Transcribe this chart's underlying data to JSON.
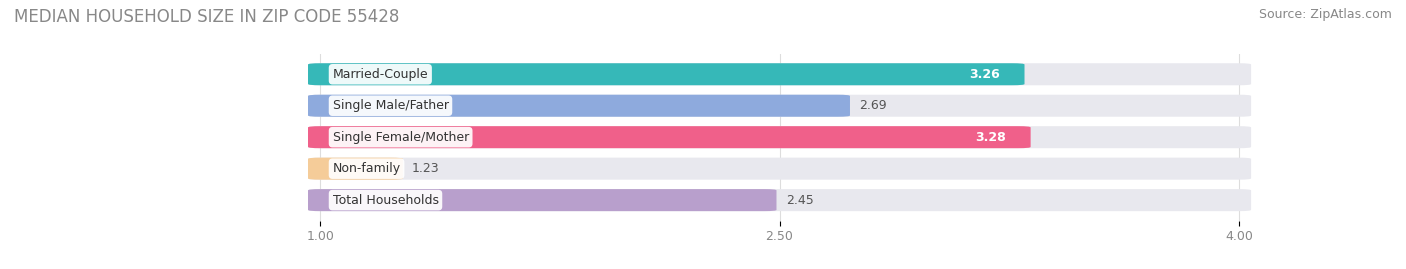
{
  "title": "MEDIAN HOUSEHOLD SIZE IN ZIP CODE 55428",
  "source": "Source: ZipAtlas.com",
  "categories": [
    "Married-Couple",
    "Single Male/Father",
    "Single Female/Mother",
    "Non-family",
    "Total Households"
  ],
  "values": [
    3.26,
    2.69,
    3.28,
    1.23,
    2.45
  ],
  "bar_colors": [
    "#36b8b8",
    "#8eaadd",
    "#f0608a",
    "#f5cc99",
    "#b89fcc"
  ],
  "label_colors": [
    "#ffffff",
    "#ffffff",
    "#ffffff",
    "#555555",
    "#ffffff"
  ],
  "value_white": [
    true,
    false,
    true,
    false,
    false
  ],
  "xlim_left": 0.0,
  "xlim_right": 4.5,
  "xdata_min": 1.0,
  "xdata_max": 4.0,
  "xticks": [
    1.0,
    2.5,
    4.0
  ],
  "xtick_labels": [
    "1.00",
    "2.50",
    "4.00"
  ],
  "bar_height": 0.62,
  "background_color": "#ffffff",
  "bar_bg_color": "#e8e8ee",
  "title_fontsize": 12,
  "source_fontsize": 9,
  "label_fontsize": 9,
  "value_fontsize": 9
}
